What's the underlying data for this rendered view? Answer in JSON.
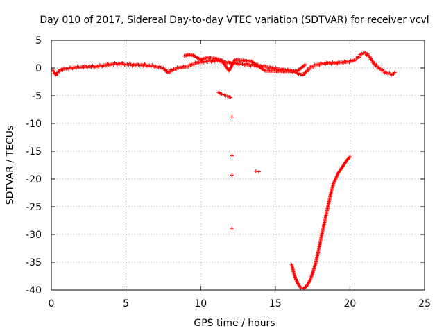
{
  "chart_data": {
    "type": "scatter",
    "title": "Day 010 of 2017, Sidereal Day-to-day VTEC variation (SDTVAR) for receiver vcvl",
    "xlabel": "GPS time / hours",
    "ylabel": "SDTVAR / TECUs",
    "xlim": [
      0,
      25
    ],
    "ylim": [
      -40,
      5
    ],
    "xticks": [
      0,
      5,
      10,
      15,
      20,
      25
    ],
    "yticks": [
      -40,
      -35,
      -30,
      -25,
      -20,
      -15,
      -10,
      -5,
      0,
      5
    ],
    "x_tick_labels": [
      "0",
      "5",
      "10",
      "15",
      "20",
      "25"
    ],
    "y_tick_labels": [
      "-40",
      "-35",
      "-30",
      "-25",
      "-20",
      "-15",
      "-10",
      "-5",
      "0",
      "5"
    ],
    "grid": true,
    "legend": "none",
    "marker": "plus",
    "color": "#ff0000",
    "series": [
      {
        "name": "trace-main",
        "points": [
          [
            0.1,
            -0.4
          ],
          [
            0.3,
            -1.2
          ],
          [
            0.6,
            -0.3
          ],
          [
            1.0,
            -0.1
          ],
          [
            1.5,
            0.1
          ],
          [
            2.0,
            0.2
          ],
          [
            2.5,
            0.3
          ],
          [
            3.0,
            0.3
          ],
          [
            3.5,
            0.5
          ],
          [
            4.0,
            0.7
          ],
          [
            4.5,
            0.8
          ],
          [
            5.0,
            0.7
          ],
          [
            5.5,
            0.6
          ],
          [
            6.0,
            0.6
          ],
          [
            6.5,
            0.5
          ],
          [
            7.0,
            0.3
          ],
          [
            7.5,
            0.0
          ],
          [
            7.8,
            -0.8
          ],
          [
            8.2,
            -0.2
          ],
          [
            8.6,
            0.1
          ],
          [
            9.0,
            0.2
          ],
          [
            9.4,
            0.6
          ],
          [
            9.8,
            1.0
          ],
          [
            10.3,
            1.2
          ],
          [
            10.8,
            1.3
          ],
          [
            11.2,
            1.3
          ],
          [
            11.6,
            1.1
          ],
          [
            12.0,
            0.9
          ],
          [
            12.4,
            0.8
          ],
          [
            12.8,
            0.7
          ],
          [
            13.2,
            0.6
          ],
          [
            13.6,
            0.5
          ],
          [
            14.0,
            0.4
          ],
          [
            14.4,
            0.2
          ],
          [
            14.8,
            0.0
          ],
          [
            15.2,
            -0.2
          ],
          [
            15.6,
            -0.3
          ],
          [
            16.0,
            -0.5
          ],
          [
            16.4,
            -0.8
          ],
          [
            16.8,
            -1.3
          ],
          [
            17.0,
            -0.8
          ],
          [
            17.4,
            0.2
          ],
          [
            17.8,
            0.6
          ],
          [
            18.2,
            0.8
          ],
          [
            18.6,
            0.9
          ],
          [
            19.0,
            0.9
          ],
          [
            19.4,
            1.0
          ],
          [
            19.8,
            1.1
          ],
          [
            20.2,
            1.3
          ],
          [
            20.5,
            1.8
          ],
          [
            20.8,
            2.6
          ],
          [
            21.0,
            2.8
          ],
          [
            21.3,
            2.1
          ],
          [
            21.6,
            0.8
          ],
          [
            22.0,
            -0.1
          ],
          [
            22.4,
            -0.8
          ],
          [
            22.8,
            -1.2
          ],
          [
            23.0,
            -0.8
          ]
        ]
      },
      {
        "name": "trace-upper-excursion",
        "points": [
          [
            8.9,
            2.2
          ],
          [
            9.2,
            2.4
          ],
          [
            9.5,
            2.3
          ],
          [
            10.0,
            1.5
          ],
          [
            10.5,
            1.9
          ],
          [
            11.0,
            1.7
          ],
          [
            11.4,
            1.4
          ],
          [
            11.9,
            -0.5
          ],
          [
            12.3,
            1.5
          ],
          [
            13.4,
            1.2
          ],
          [
            14.3,
            -0.5
          ],
          [
            15.7,
            -0.6
          ],
          [
            16.5,
            -0.5
          ],
          [
            17.0,
            0.6
          ]
        ]
      },
      {
        "name": "segment-descending",
        "points": [
          [
            11.2,
            -4.4
          ],
          [
            11.4,
            -4.7
          ],
          [
            11.6,
            -4.9
          ],
          [
            11.8,
            -5.1
          ],
          [
            12.0,
            -5.3
          ]
        ]
      },
      {
        "name": "isolated-points",
        "points": [
          [
            12.1,
            -8.8
          ],
          [
            12.1,
            -15.8
          ],
          [
            12.1,
            -19.3
          ],
          [
            12.1,
            -28.9
          ],
          [
            13.7,
            -18.6
          ],
          [
            13.9,
            -18.7
          ]
        ]
      },
      {
        "name": "deep-dip-recovery",
        "points": [
          [
            16.1,
            -35.5
          ],
          [
            16.3,
            -37.5
          ],
          [
            16.5,
            -38.8
          ],
          [
            16.7,
            -39.6
          ],
          [
            16.9,
            -39.7
          ],
          [
            17.1,
            -39.3
          ],
          [
            17.3,
            -38.4
          ],
          [
            17.5,
            -37.0
          ],
          [
            17.7,
            -35.2
          ],
          [
            17.9,
            -32.8
          ],
          [
            18.1,
            -30.2
          ],
          [
            18.3,
            -27.8
          ],
          [
            18.5,
            -25.3
          ],
          [
            18.7,
            -22.8
          ],
          [
            18.9,
            -20.8
          ],
          [
            19.2,
            -19.0
          ],
          [
            19.5,
            -17.8
          ],
          [
            19.8,
            -16.6
          ],
          [
            20.0,
            -16.0
          ]
        ]
      }
    ]
  }
}
